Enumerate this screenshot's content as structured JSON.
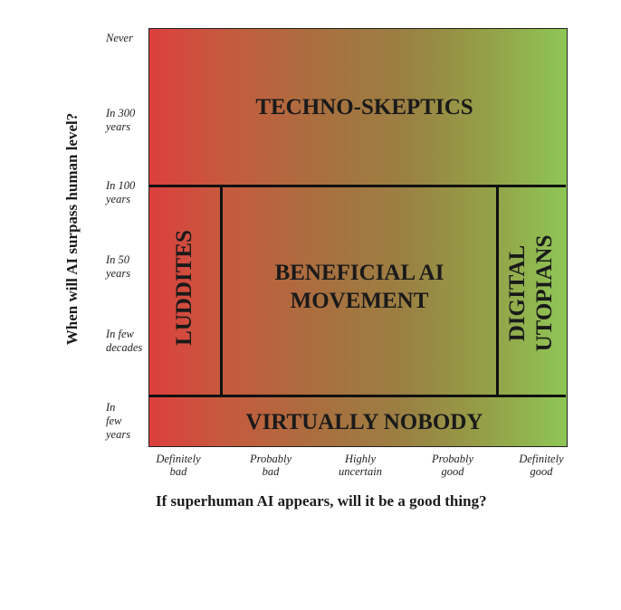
{
  "y_axis": {
    "label": "When will AI surpass human level?",
    "ticks": [
      {
        "lines": [
          "Never"
        ]
      },
      {
        "lines": [
          "In 300",
          "years"
        ]
      },
      {
        "lines": [
          "In 100",
          "years"
        ]
      },
      {
        "lines": [
          "In 50",
          "years"
        ]
      },
      {
        "lines": [
          "In few",
          "decades"
        ]
      },
      {
        "lines": [
          "In",
          "few",
          "years"
        ]
      }
    ]
  },
  "x_axis": {
    "label": "If superhuman AI appears, will it be a good thing?",
    "ticks": [
      {
        "lines": [
          "Definitely",
          "bad"
        ]
      },
      {
        "lines": [
          "Probably",
          "bad"
        ]
      },
      {
        "lines": [
          "Highly",
          "uncertain"
        ]
      },
      {
        "lines": [
          "Probably",
          "good"
        ]
      },
      {
        "lines": [
          "Definitely",
          "good"
        ]
      }
    ]
  },
  "regions": {
    "techno_skeptics": "TECHNO-SKEPTICS",
    "luddites": "LUDDITES",
    "beneficial_line1": "BENEFICIAL AI",
    "beneficial_line2": "MOVEMENT",
    "digital_line1": "DIGITAL",
    "digital_line2": "UTOPIANS",
    "virtually_nobody": "VIRTUALLY NOBODY"
  },
  "colors": {
    "bad_end": "#dc3f3e",
    "middle": "#a8703f",
    "good_end": "#8ec656",
    "lines": "#111111"
  }
}
